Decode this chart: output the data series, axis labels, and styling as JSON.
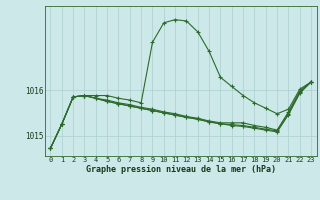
{
  "background_color": "#cce8e8",
  "line_color": "#2d6a2d",
  "grid_color": "#aacfcf",
  "xlabel": "Graphe pression niveau de la mer (hPa)",
  "x_ticks": [
    0,
    1,
    2,
    3,
    4,
    5,
    6,
    7,
    8,
    9,
    10,
    11,
    12,
    13,
    14,
    15,
    16,
    17,
    18,
    19,
    20,
    21,
    22,
    23
  ],
  "ylim": [
    1014.55,
    1017.85
  ],
  "yticks": [
    1015,
    1016
  ],
  "series": [
    [
      1014.72,
      1015.25,
      1015.85,
      1015.88,
      1015.88,
      1015.88,
      1015.82,
      1015.78,
      1015.72,
      1017.05,
      1017.48,
      1017.55,
      1017.52,
      1017.28,
      1016.85,
      1016.28,
      1016.08,
      1015.88,
      1015.72,
      1015.6,
      1015.48,
      1015.58,
      1016.02,
      1016.18
    ],
    [
      1014.72,
      1015.25,
      1015.85,
      1015.88,
      1015.82,
      1015.78,
      1015.72,
      1015.68,
      1015.62,
      1015.58,
      1015.52,
      1015.48,
      1015.42,
      1015.38,
      1015.32,
      1015.28,
      1015.28,
      1015.28,
      1015.22,
      1015.18,
      1015.12,
      1015.52,
      1015.98,
      1016.18
    ],
    [
      1014.72,
      1015.25,
      1015.85,
      1015.88,
      1015.82,
      1015.75,
      1015.7,
      1015.65,
      1015.6,
      1015.55,
      1015.5,
      1015.45,
      1015.4,
      1015.36,
      1015.3,
      1015.26,
      1015.24,
      1015.22,
      1015.18,
      1015.14,
      1015.1,
      1015.48,
      1015.95,
      1016.18
    ],
    [
      1014.72,
      1015.25,
      1015.85,
      1015.88,
      1015.82,
      1015.75,
      1015.7,
      1015.65,
      1015.6,
      1015.55,
      1015.5,
      1015.45,
      1015.4,
      1015.36,
      1015.3,
      1015.26,
      1015.22,
      1015.2,
      1015.16,
      1015.12,
      1015.08,
      1015.46,
      1015.93,
      1016.18
    ]
  ]
}
